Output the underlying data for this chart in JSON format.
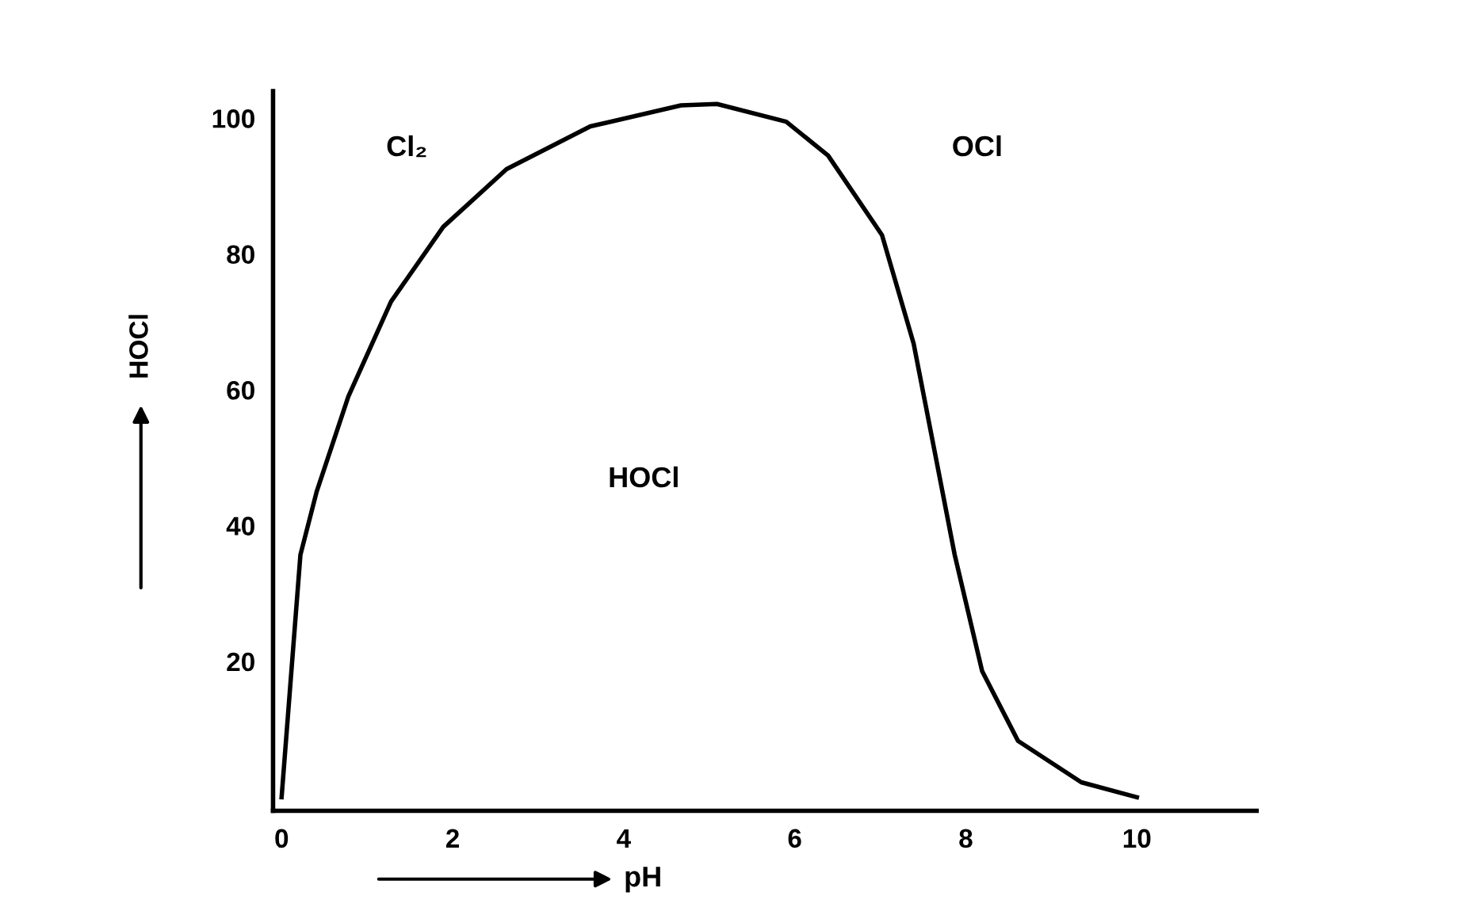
{
  "chart_data": {
    "type": "line",
    "xlabel": "pH",
    "ylabel": "HOCl",
    "x": [
      0,
      0.22,
      0.41,
      0.78,
      1.28,
      1.89,
      2.63,
      3.61,
      4.67,
      5.09,
      5.9,
      6.39,
      7.02,
      7.39,
      7.63,
      7.87,
      8.19,
      8.61,
      9.35,
      10
    ],
    "series": [
      {
        "color": "#000000",
        "values": [
          0,
          35.7,
          45,
          59,
          73,
          84,
          92.5,
          98.8,
          101.9,
          102.1,
          99.5,
          94.5,
          82.8,
          66.8,
          51.3,
          35.7,
          18.6,
          8.3,
          2.2,
          0
        ]
      }
    ],
    "xlim": [
      -0.1,
      11.4
    ],
    "ylim": [
      -2,
      104
    ],
    "xticks": [
      0,
      2,
      4,
      6,
      8,
      10
    ],
    "yticks": [
      20,
      40,
      60,
      80,
      100
    ],
    "annotations": [
      "Cl₂",
      "OCl",
      "HOCl"
    ],
    "grid": false,
    "legend": false,
    "marker": "none",
    "line_style": "solid"
  }
}
